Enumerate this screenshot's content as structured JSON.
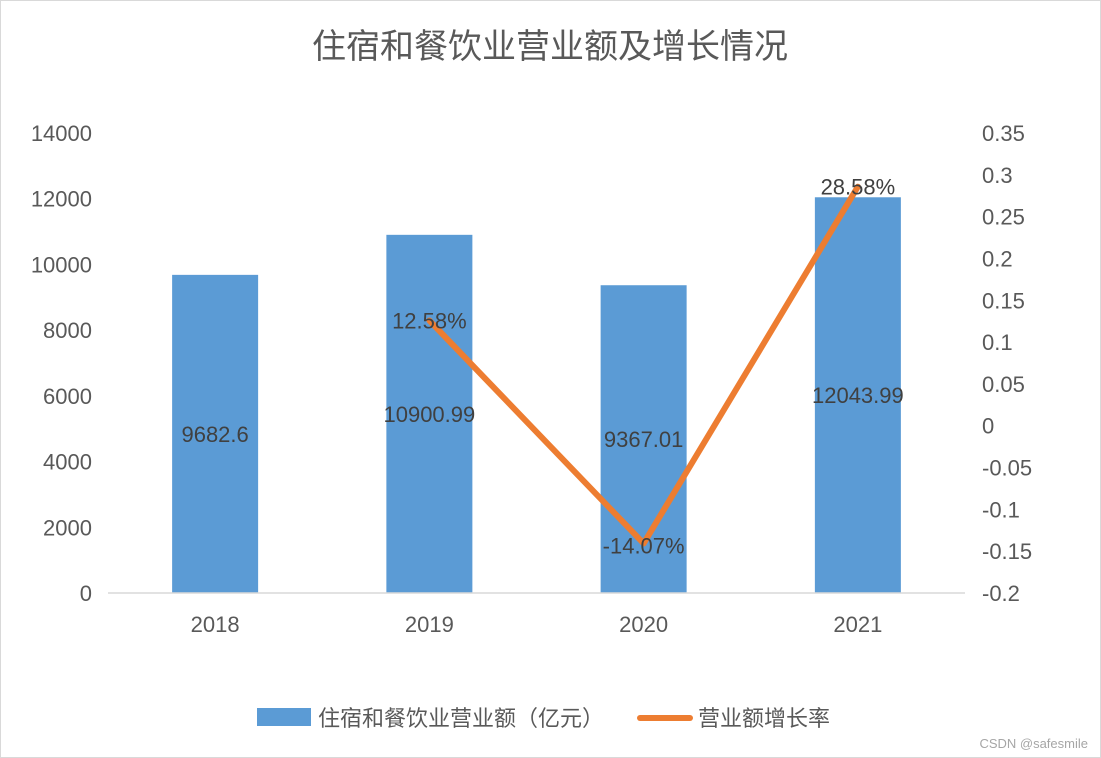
{
  "chart_data": {
    "type": "bar+line",
    "title": "住宿和餐饮业营业额及增长情况",
    "categories": [
      "2018",
      "2019",
      "2020",
      "2021"
    ],
    "series": [
      {
        "name": "住宿和餐饮业营业额（亿元）",
        "type": "bar",
        "axis": "left",
        "color": "#5b9bd5",
        "values": [
          9682.6,
          10900.99,
          9367.01,
          12043.99
        ],
        "labels": [
          "9682.6",
          "10900.99",
          "9367.01",
          "12043.99"
        ]
      },
      {
        "name": "营业额增长率",
        "type": "line",
        "axis": "right",
        "color": "#ed7d31",
        "values": [
          null,
          0.1258,
          -0.1407,
          0.2858
        ],
        "labels": [
          "",
          "12.58%",
          "-14.07%",
          "28.58%"
        ]
      }
    ],
    "left_axis": {
      "range": [
        0,
        14000
      ],
      "ticks": [
        "0",
        "2000",
        "4000",
        "6000",
        "8000",
        "10000",
        "12000",
        "14000"
      ]
    },
    "right_axis": {
      "range": [
        -0.2,
        0.35
      ],
      "ticks": [
        "-0.2",
        "-0.15",
        "-0.1",
        "-0.05",
        "0",
        "0.05",
        "0.1",
        "0.15",
        "0.2",
        "0.25",
        "0.3",
        "0.35"
      ]
    },
    "grid": false,
    "legend": "bottom"
  },
  "watermark": "CSDN @safesmile"
}
